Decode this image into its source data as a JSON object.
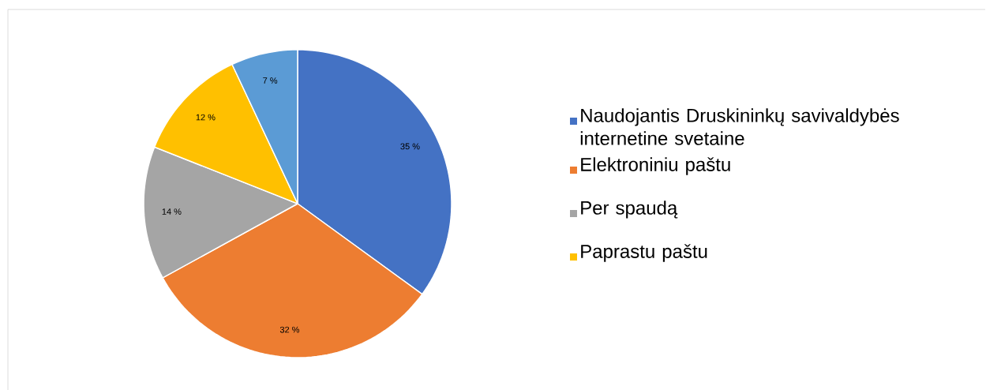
{
  "chart_data": {
    "type": "pie",
    "categories": [
      "Naudojantis Druskininkų savivaldybės internetine svetaine",
      "Elektroniniu paštu",
      "Per spaudą",
      "Paprastu paštu",
      null
    ],
    "values": [
      35,
      32,
      14,
      12,
      7
    ],
    "value_labels": [
      "35 %",
      "32 %",
      "14 %",
      "12 %",
      "7 %"
    ],
    "colors": [
      "#4472c4",
      "#ed7d31",
      "#a5a5a5",
      "#ffc000",
      "#5b9bd5"
    ],
    "legend": "right"
  }
}
